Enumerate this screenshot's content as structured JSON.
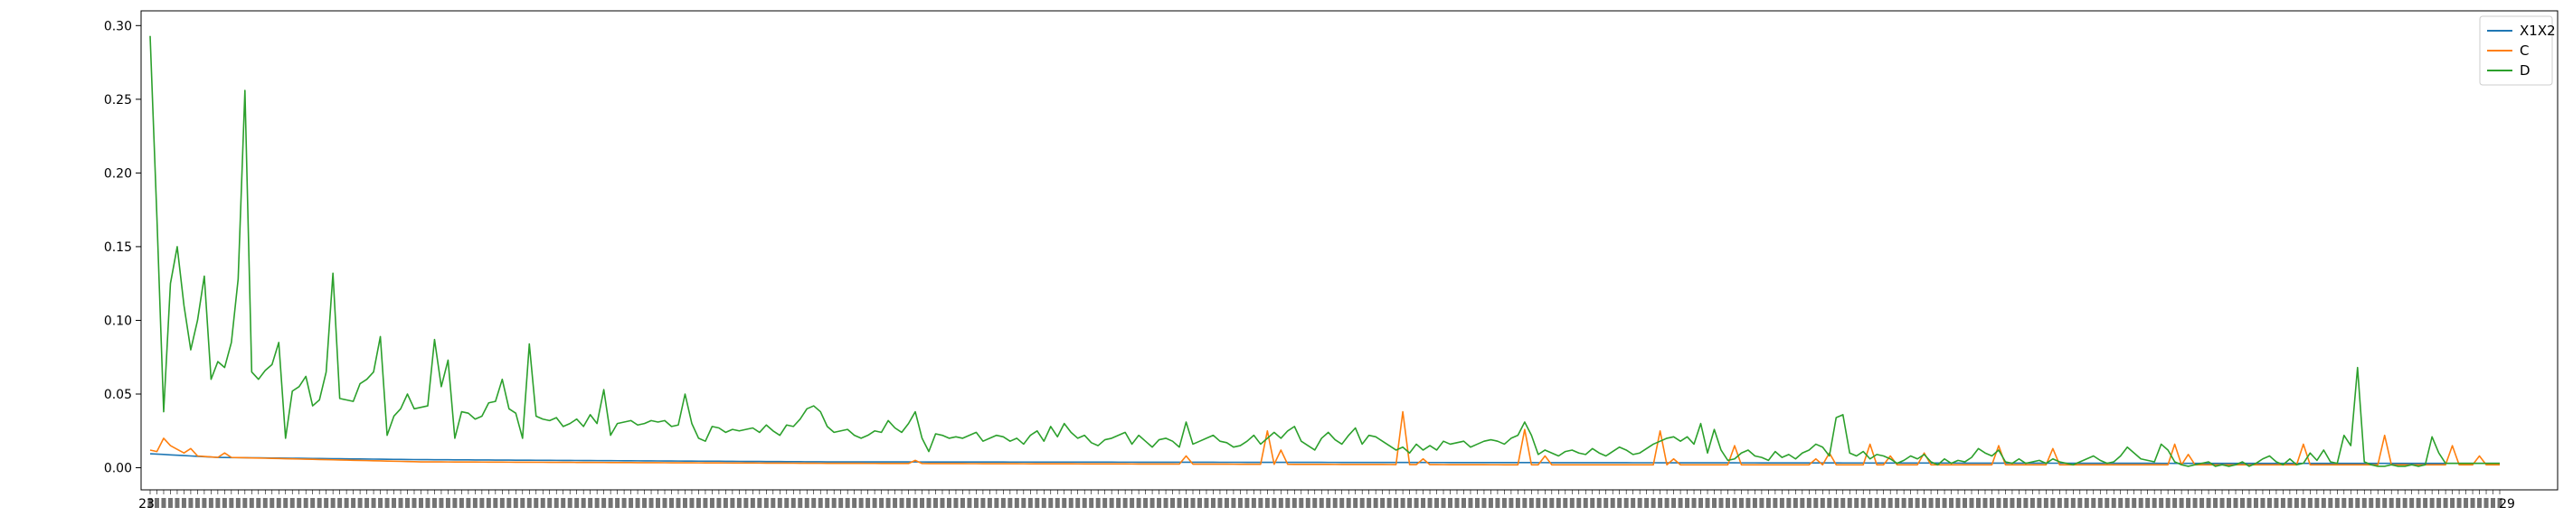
{
  "chart_data": {
    "type": "line",
    "title": "",
    "xlabel": "",
    "ylabel": "",
    "ylim": [
      -0.015,
      0.31
    ],
    "y_ticks": [
      0.0,
      0.05,
      0.1,
      0.15,
      0.2,
      0.25,
      0.3
    ],
    "y_tick_labels": [
      "0.00",
      "0.05",
      "0.10",
      "0.15",
      "0.20",
      "0.25",
      "0.30"
    ],
    "legend_placement": "top-right",
    "grid": false,
    "x_tick_labels_visible": [
      "23",
      "29"
    ],
    "series": [
      {
        "name": "X1X2",
        "color": "#1f77b4",
        "anchors": [
          [
            0,
            0.0095
          ],
          [
            10,
            0.007
          ],
          [
            40,
            0.0055
          ],
          [
            100,
            0.004
          ],
          [
            200,
            0.0035
          ],
          [
            300,
            0.003
          ],
          [
            347,
            0.003
          ]
        ],
        "spikes": []
      },
      {
        "name": "C",
        "color": "#ff7f0e",
        "anchors": [
          [
            0,
            0.012
          ],
          [
            1,
            0.011
          ],
          [
            2,
            0.02
          ],
          [
            3,
            0.015
          ],
          [
            5,
            0.01
          ],
          [
            6,
            0.013
          ],
          [
            7,
            0.008
          ],
          [
            10,
            0.007
          ],
          [
            11,
            0.01
          ],
          [
            12,
            0.007
          ],
          [
            40,
            0.004
          ],
          [
            100,
            0.003
          ],
          [
            200,
            0.002
          ],
          [
            347,
            0.002
          ]
        ],
        "spikes": [
          [
            113,
            0.005
          ],
          [
            153,
            0.008
          ],
          [
            165,
            0.025
          ],
          [
            167,
            0.012
          ],
          [
            185,
            0.038
          ],
          [
            188,
            0.006
          ],
          [
            203,
            0.026
          ],
          [
            206,
            0.008
          ],
          [
            223,
            0.025
          ],
          [
            225,
            0.006
          ],
          [
            234,
            0.015
          ],
          [
            246,
            0.006
          ],
          [
            248,
            0.01
          ],
          [
            254,
            0.016
          ],
          [
            257,
            0.008
          ],
          [
            262,
            0.01
          ],
          [
            273,
            0.015
          ],
          [
            281,
            0.013
          ],
          [
            299,
            0.016
          ],
          [
            301,
            0.009
          ],
          [
            318,
            0.016
          ],
          [
            330,
            0.022
          ],
          [
            340,
            0.015
          ],
          [
            344,
            0.008
          ]
        ]
      },
      {
        "name": "D",
        "color": "#2ca02c",
        "points": [
          0.293,
          0.17,
          0.038,
          0.125,
          0.15,
          0.11,
          0.08,
          0.1,
          0.13,
          0.06,
          0.072,
          0.068,
          0.085,
          0.128,
          0.256,
          0.065,
          0.06,
          0.066,
          0.07,
          0.085,
          0.02,
          0.052,
          0.055,
          0.062,
          0.042,
          0.046,
          0.065,
          0.132,
          0.047,
          0.046,
          0.045,
          0.057,
          0.06,
          0.065,
          0.089,
          0.022,
          0.035,
          0.04,
          0.05,
          0.04,
          0.041,
          0.042,
          0.087,
          0.055,
          0.073,
          0.02,
          0.038,
          0.037,
          0.033,
          0.035,
          0.044,
          0.045,
          0.06,
          0.04,
          0.037,
          0.02,
          0.084,
          0.035,
          0.033,
          0.032,
          0.034,
          0.028,
          0.03,
          0.033,
          0.028,
          0.036,
          0.03,
          0.053,
          0.022,
          0.03,
          0.031,
          0.032,
          0.029,
          0.03,
          0.032,
          0.031,
          0.032,
          0.028,
          0.029,
          0.05,
          0.03,
          0.02,
          0.018,
          0.028,
          0.027,
          0.024,
          0.026,
          0.025,
          0.026,
          0.027,
          0.024,
          0.029,
          0.025,
          0.022,
          0.029,
          0.028,
          0.033,
          0.04,
          0.042,
          0.038,
          0.028,
          0.024,
          0.025,
          0.026,
          0.022,
          0.02,
          0.022,
          0.025,
          0.024,
          0.032,
          0.027,
          0.024,
          0.03,
          0.038,
          0.02,
          0.011,
          0.023,
          0.022,
          0.02,
          0.021,
          0.02,
          0.022,
          0.024,
          0.018,
          0.02,
          0.022,
          0.021,
          0.018,
          0.02,
          0.016,
          0.022,
          0.025,
          0.018,
          0.028,
          0.021,
          0.03,
          0.024,
          0.02,
          0.022,
          0.017,
          0.015,
          0.019,
          0.02,
          0.022,
          0.024,
          0.016,
          0.022,
          0.018,
          0.014,
          0.019,
          0.02,
          0.018,
          0.014,
          0.031,
          0.016,
          0.018,
          0.02,
          0.022,
          0.018,
          0.017,
          0.014,
          0.015,
          0.018,
          0.022,
          0.016,
          0.02,
          0.024,
          0.02,
          0.025,
          0.028,
          0.018,
          0.015,
          0.012,
          0.02,
          0.024,
          0.019,
          0.016,
          0.022,
          0.027,
          0.016,
          0.022,
          0.021,
          0.018,
          0.015,
          0.012,
          0.014,
          0.01,
          0.016,
          0.012,
          0.015,
          0.012,
          0.018,
          0.016,
          0.017,
          0.018,
          0.014,
          0.016,
          0.018,
          0.019,
          0.018,
          0.016,
          0.02,
          0.022,
          0.031,
          0.022,
          0.009,
          0.012,
          0.01,
          0.008,
          0.011,
          0.012,
          0.01,
          0.009,
          0.013,
          0.01,
          0.008,
          0.011,
          0.014,
          0.012,
          0.009,
          0.01,
          0.013,
          0.016,
          0.018,
          0.02,
          0.021,
          0.018,
          0.021,
          0.016,
          0.03,
          0.01,
          0.026,
          0.012,
          0.005,
          0.006,
          0.01,
          0.012,
          0.008,
          0.007,
          0.005,
          0.011,
          0.007,
          0.009,
          0.006,
          0.01,
          0.012,
          0.016,
          0.014,
          0.008,
          0.034,
          0.036,
          0.01,
          0.008,
          0.011,
          0.006,
          0.009,
          0.008,
          0.006,
          0.003,
          0.005,
          0.008,
          0.006,
          0.009,
          0.004,
          0.002,
          0.006,
          0.003,
          0.005,
          0.004,
          0.007,
          0.013,
          0.01,
          0.008,
          0.012,
          0.004,
          0.003,
          0.006,
          0.003,
          0.004,
          0.005,
          0.003,
          0.006,
          0.004,
          0.003,
          0.002,
          0.004,
          0.006,
          0.008,
          0.005,
          0.003,
          0.004,
          0.008,
          0.014,
          0.01,
          0.006,
          0.005,
          0.004,
          0.016,
          0.012,
          0.004,
          0.002,
          0.001,
          0.002,
          0.003,
          0.004,
          0.001,
          0.002,
          0.001,
          0.002,
          0.004,
          0.001,
          0.003,
          0.006,
          0.008,
          0.004,
          0.002,
          0.006,
          0.002,
          0.003,
          0.01,
          0.005,
          0.012,
          0.004,
          0.003,
          0.022,
          0.015,
          0.068,
          0.004,
          0.002,
          0.001,
          0.001,
          0.002,
          0.001,
          0.001,
          0.002,
          0.001,
          0.002,
          0.021,
          0.01,
          0.003
        ]
      }
    ],
    "n_points": 348
  }
}
